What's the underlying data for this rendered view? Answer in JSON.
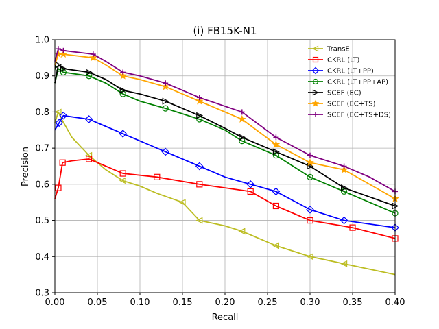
{
  "chart_data": {
    "type": "line",
    "title": "(i) FB15K-N1",
    "xlabel": "Recall",
    "ylabel": "Precision",
    "xlim": [
      0,
      0.4
    ],
    "ylim": [
      0.3,
      1.0
    ],
    "xticks": [
      "0.00",
      "0.05",
      "0.10",
      "0.15",
      "0.20",
      "0.25",
      "0.30",
      "0.35",
      "0.40"
    ],
    "yticks": [
      "0.3",
      "0.4",
      "0.5",
      "0.6",
      "0.7",
      "0.8",
      "0.9",
      "1.0"
    ],
    "grid": true,
    "legend_position": "top-right",
    "series": [
      {
        "name": "TransE",
        "color": "#bcbd22",
        "marker": "triangle-left",
        "x": [
          0,
          0.004,
          0.008,
          0.02,
          0.04,
          0.06,
          0.08,
          0.1,
          0.12,
          0.15,
          0.17,
          0.2,
          0.22,
          0.24,
          0.26,
          0.28,
          0.3,
          0.32,
          0.34,
          0.36,
          0.38,
          0.4
        ],
        "y": [
          0.77,
          0.8,
          0.78,
          0.73,
          0.68,
          0.64,
          0.61,
          0.595,
          0.575,
          0.55,
          0.5,
          0.485,
          0.47,
          0.45,
          0.43,
          0.415,
          0.4,
          0.39,
          0.38,
          0.37,
          0.36,
          0.35
        ],
        "marker_x": [
          0.004,
          0.04,
          0.08,
          0.15,
          0.17,
          0.22,
          0.26,
          0.3,
          0.34
        ]
      },
      {
        "name": "CKRL (LT)",
        "color": "#ff0000",
        "marker": "square",
        "x": [
          0,
          0.004,
          0.009,
          0.02,
          0.04,
          0.06,
          0.08,
          0.12,
          0.17,
          0.23,
          0.26,
          0.3,
          0.35,
          0.4
        ],
        "y": [
          0.56,
          0.59,
          0.66,
          0.665,
          0.67,
          0.65,
          0.63,
          0.62,
          0.6,
          0.58,
          0.54,
          0.5,
          0.48,
          0.45
        ],
        "marker_x": [
          0.004,
          0.009,
          0.04,
          0.08,
          0.12,
          0.17,
          0.23,
          0.26,
          0.3,
          0.35,
          0.4
        ]
      },
      {
        "name": "CKRL (LT+PP)",
        "color": "#0000ff",
        "marker": "diamond",
        "x": [
          0,
          0.005,
          0.01,
          0.04,
          0.06,
          0.08,
          0.1,
          0.13,
          0.17,
          0.2,
          0.23,
          0.26,
          0.3,
          0.34,
          0.4
        ],
        "y": [
          0.75,
          0.77,
          0.79,
          0.78,
          0.76,
          0.74,
          0.72,
          0.69,
          0.65,
          0.62,
          0.6,
          0.58,
          0.53,
          0.5,
          0.48
        ],
        "marker_x": [
          0.005,
          0.01,
          0.04,
          0.08,
          0.13,
          0.17,
          0.23,
          0.26,
          0.3,
          0.34,
          0.4
        ]
      },
      {
        "name": "CKRL (LT+PP+AP)",
        "color": "#008000",
        "marker": "circle",
        "x": [
          0,
          0.004,
          0.01,
          0.04,
          0.06,
          0.08,
          0.1,
          0.13,
          0.17,
          0.2,
          0.22,
          0.26,
          0.3,
          0.34,
          0.37,
          0.4
        ],
        "y": [
          0.88,
          0.92,
          0.91,
          0.9,
          0.88,
          0.85,
          0.83,
          0.81,
          0.78,
          0.75,
          0.72,
          0.68,
          0.62,
          0.58,
          0.55,
          0.52
        ],
        "marker_x": [
          0.004,
          0.01,
          0.04,
          0.08,
          0.13,
          0.17,
          0.22,
          0.26,
          0.3,
          0.34,
          0.4
        ]
      },
      {
        "name": "SCEF (EC)",
        "color": "#000000",
        "marker": "triangle-right",
        "x": [
          0,
          0.004,
          0.01,
          0.04,
          0.06,
          0.08,
          0.1,
          0.13,
          0.17,
          0.2,
          0.22,
          0.26,
          0.3,
          0.34,
          0.37,
          0.4
        ],
        "y": [
          0.88,
          0.93,
          0.92,
          0.91,
          0.89,
          0.86,
          0.85,
          0.83,
          0.79,
          0.755,
          0.73,
          0.69,
          0.65,
          0.59,
          0.565,
          0.54
        ],
        "marker_x": [
          0.004,
          0.01,
          0.04,
          0.08,
          0.13,
          0.17,
          0.22,
          0.26,
          0.3,
          0.34,
          0.4
        ]
      },
      {
        "name": "SCEF (EC+TS)",
        "color": "#ffa500",
        "marker": "star",
        "x": [
          0,
          0.004,
          0.01,
          0.045,
          0.06,
          0.08,
          0.1,
          0.13,
          0.17,
          0.22,
          0.26,
          0.3,
          0.34,
          0.37,
          0.4
        ],
        "y": [
          0.93,
          0.96,
          0.96,
          0.95,
          0.93,
          0.9,
          0.89,
          0.87,
          0.83,
          0.78,
          0.71,
          0.66,
          0.64,
          0.6,
          0.56
        ],
        "marker_x": [
          0.004,
          0.01,
          0.045,
          0.08,
          0.13,
          0.17,
          0.22,
          0.26,
          0.3,
          0.34,
          0.4
        ]
      },
      {
        "name": "SCEF (EC+TS+DS)",
        "color": "#800080",
        "marker": "plus",
        "x": [
          0,
          0.004,
          0.01,
          0.045,
          0.06,
          0.08,
          0.1,
          0.13,
          0.17,
          0.22,
          0.26,
          0.3,
          0.34,
          0.37,
          0.4
        ],
        "y": [
          0.94,
          0.975,
          0.97,
          0.96,
          0.94,
          0.91,
          0.9,
          0.88,
          0.84,
          0.8,
          0.73,
          0.68,
          0.65,
          0.62,
          0.58
        ],
        "marker_x": [
          0.004,
          0.01,
          0.045,
          0.08,
          0.13,
          0.17,
          0.22,
          0.26,
          0.3,
          0.34,
          0.4
        ]
      }
    ]
  }
}
